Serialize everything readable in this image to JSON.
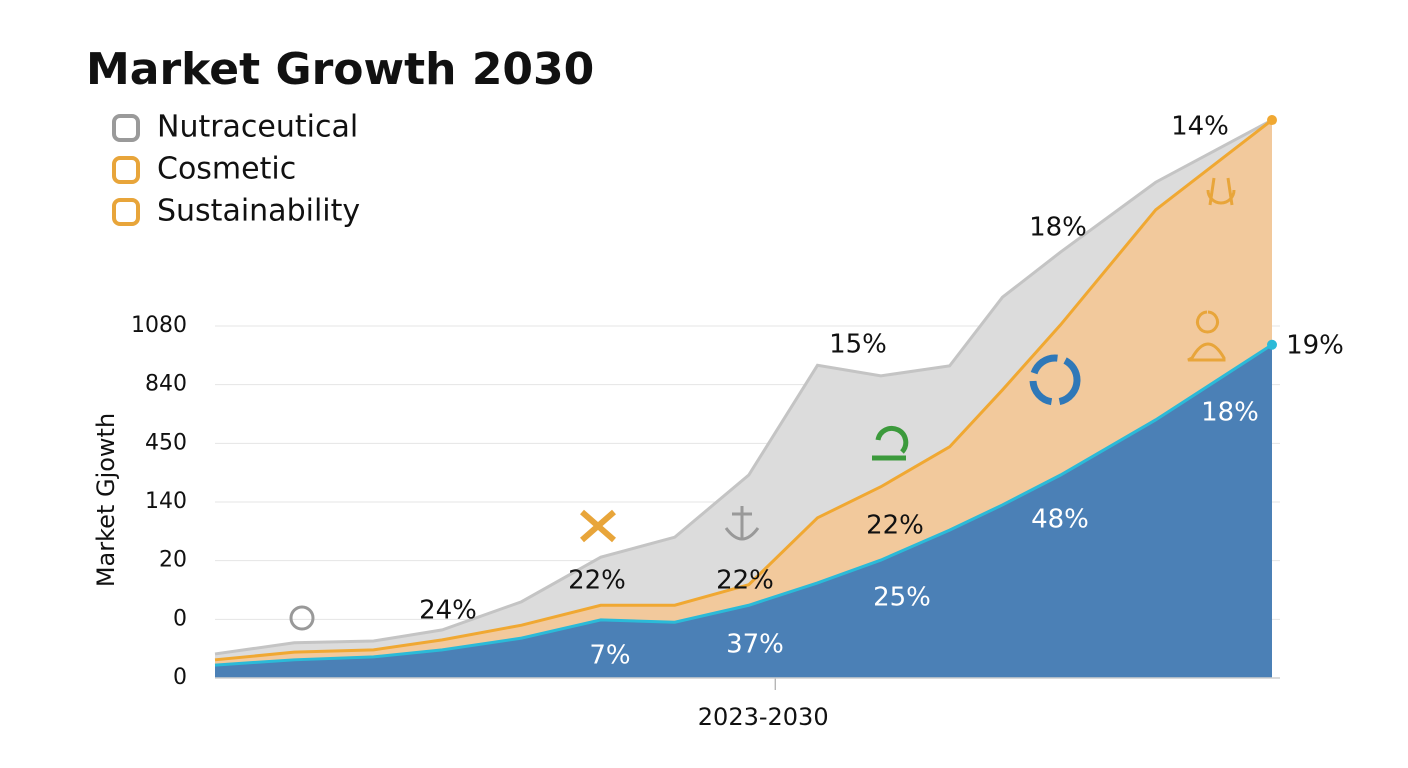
{
  "chart_data": {
    "type": "area",
    "title": "Market Growth 2030",
    "y_label": "Market Gjowth",
    "x": [
      0,
      1.5,
      3,
      4.3,
      5.8,
      7.3,
      8.7,
      10.1,
      11.4,
      12.6,
      13.9,
      14.9,
      16,
      17.8,
      20
    ],
    "xlim": [
      0,
      20
    ],
    "xticks": [
      {
        "value": 10.6,
        "label": "2023-2030"
      }
    ],
    "ylim": [
      0,
      9.6
    ],
    "yticks": [
      {
        "value": 0,
        "label": "0"
      },
      {
        "value": 1,
        "label": "0"
      },
      {
        "value": 2,
        "label": "20"
      },
      {
        "value": 3,
        "label": "140"
      },
      {
        "value": 4,
        "label": "450"
      },
      {
        "value": 5,
        "label": "840"
      },
      {
        "value": 6,
        "label": "1080"
      }
    ],
    "grid": true,
    "legend": "top-left",
    "series": [
      {
        "name": "Nutraceutical",
        "color": "#dcdcdc",
        "line_color": "#c4c4c4",
        "legend_color": "#9a9a9a",
        "values": [
          0.41,
          0.6,
          0.63,
          0.82,
          1.3,
          2.06,
          2.4,
          3.46,
          5.33,
          5.15,
          5.32,
          6.49,
          7.26,
          8.45,
          9.51
        ]
      },
      {
        "name": "Cosmetic",
        "color": "#f2c99c",
        "line_color": "#f0a832",
        "legend_color": "#e8a53a",
        "values": [
          0.31,
          0.44,
          0.48,
          0.65,
          0.9,
          1.24,
          1.24,
          1.59,
          2.73,
          3.26,
          3.94,
          4.91,
          6.02,
          7.98,
          9.51
        ]
      },
      {
        "name": "Sustainability",
        "color": "#4b80b6",
        "line_color": "#2bbad8",
        "legend_color": "#e8a53a",
        "values": [
          0.22,
          0.31,
          0.36,
          0.48,
          0.68,
          0.99,
          0.95,
          1.24,
          1.62,
          2.01,
          2.52,
          2.95,
          3.46,
          4.4,
          5.68
        ]
      }
    ],
    "annotations": [
      "14%",
      "18%",
      "15%",
      "19%",
      "24%",
      "22%",
      "22%",
      "22%",
      "18%",
      "48%",
      "25%",
      "7%",
      "37%"
    ]
  }
}
